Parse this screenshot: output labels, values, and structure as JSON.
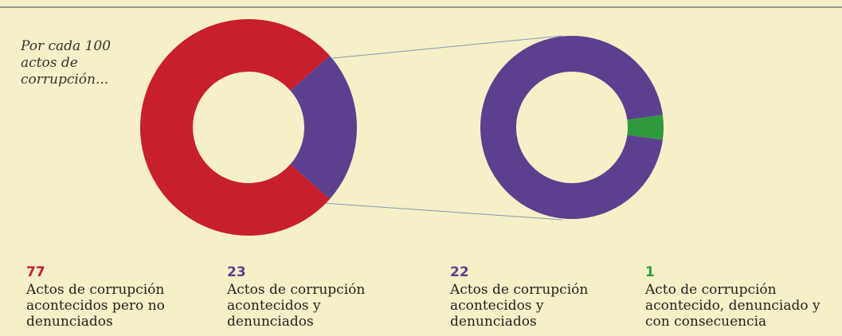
{
  "chart_data": [
    {
      "type": "pie",
      "annotation": "Por cada 100 actos de corrupción...",
      "categories": [
        "Actos de corrupción acontecidos pero no denunciados",
        "Actos de corrupción acontecidos y denunciados"
      ],
      "values": [
        77,
        23
      ],
      "colors": [
        "#c81f2d",
        "#5c3f8e"
      ]
    },
    {
      "type": "pie",
      "categories": [
        "Actos de corrupción acontecidos y denunciados",
        "Acto de corrupción acontecido, denunciado y con consecuencia"
      ],
      "values": [
        22,
        1
      ],
      "colors": [
        "#5c3f8e",
        "#2f9a3c"
      ]
    }
  ]
}
